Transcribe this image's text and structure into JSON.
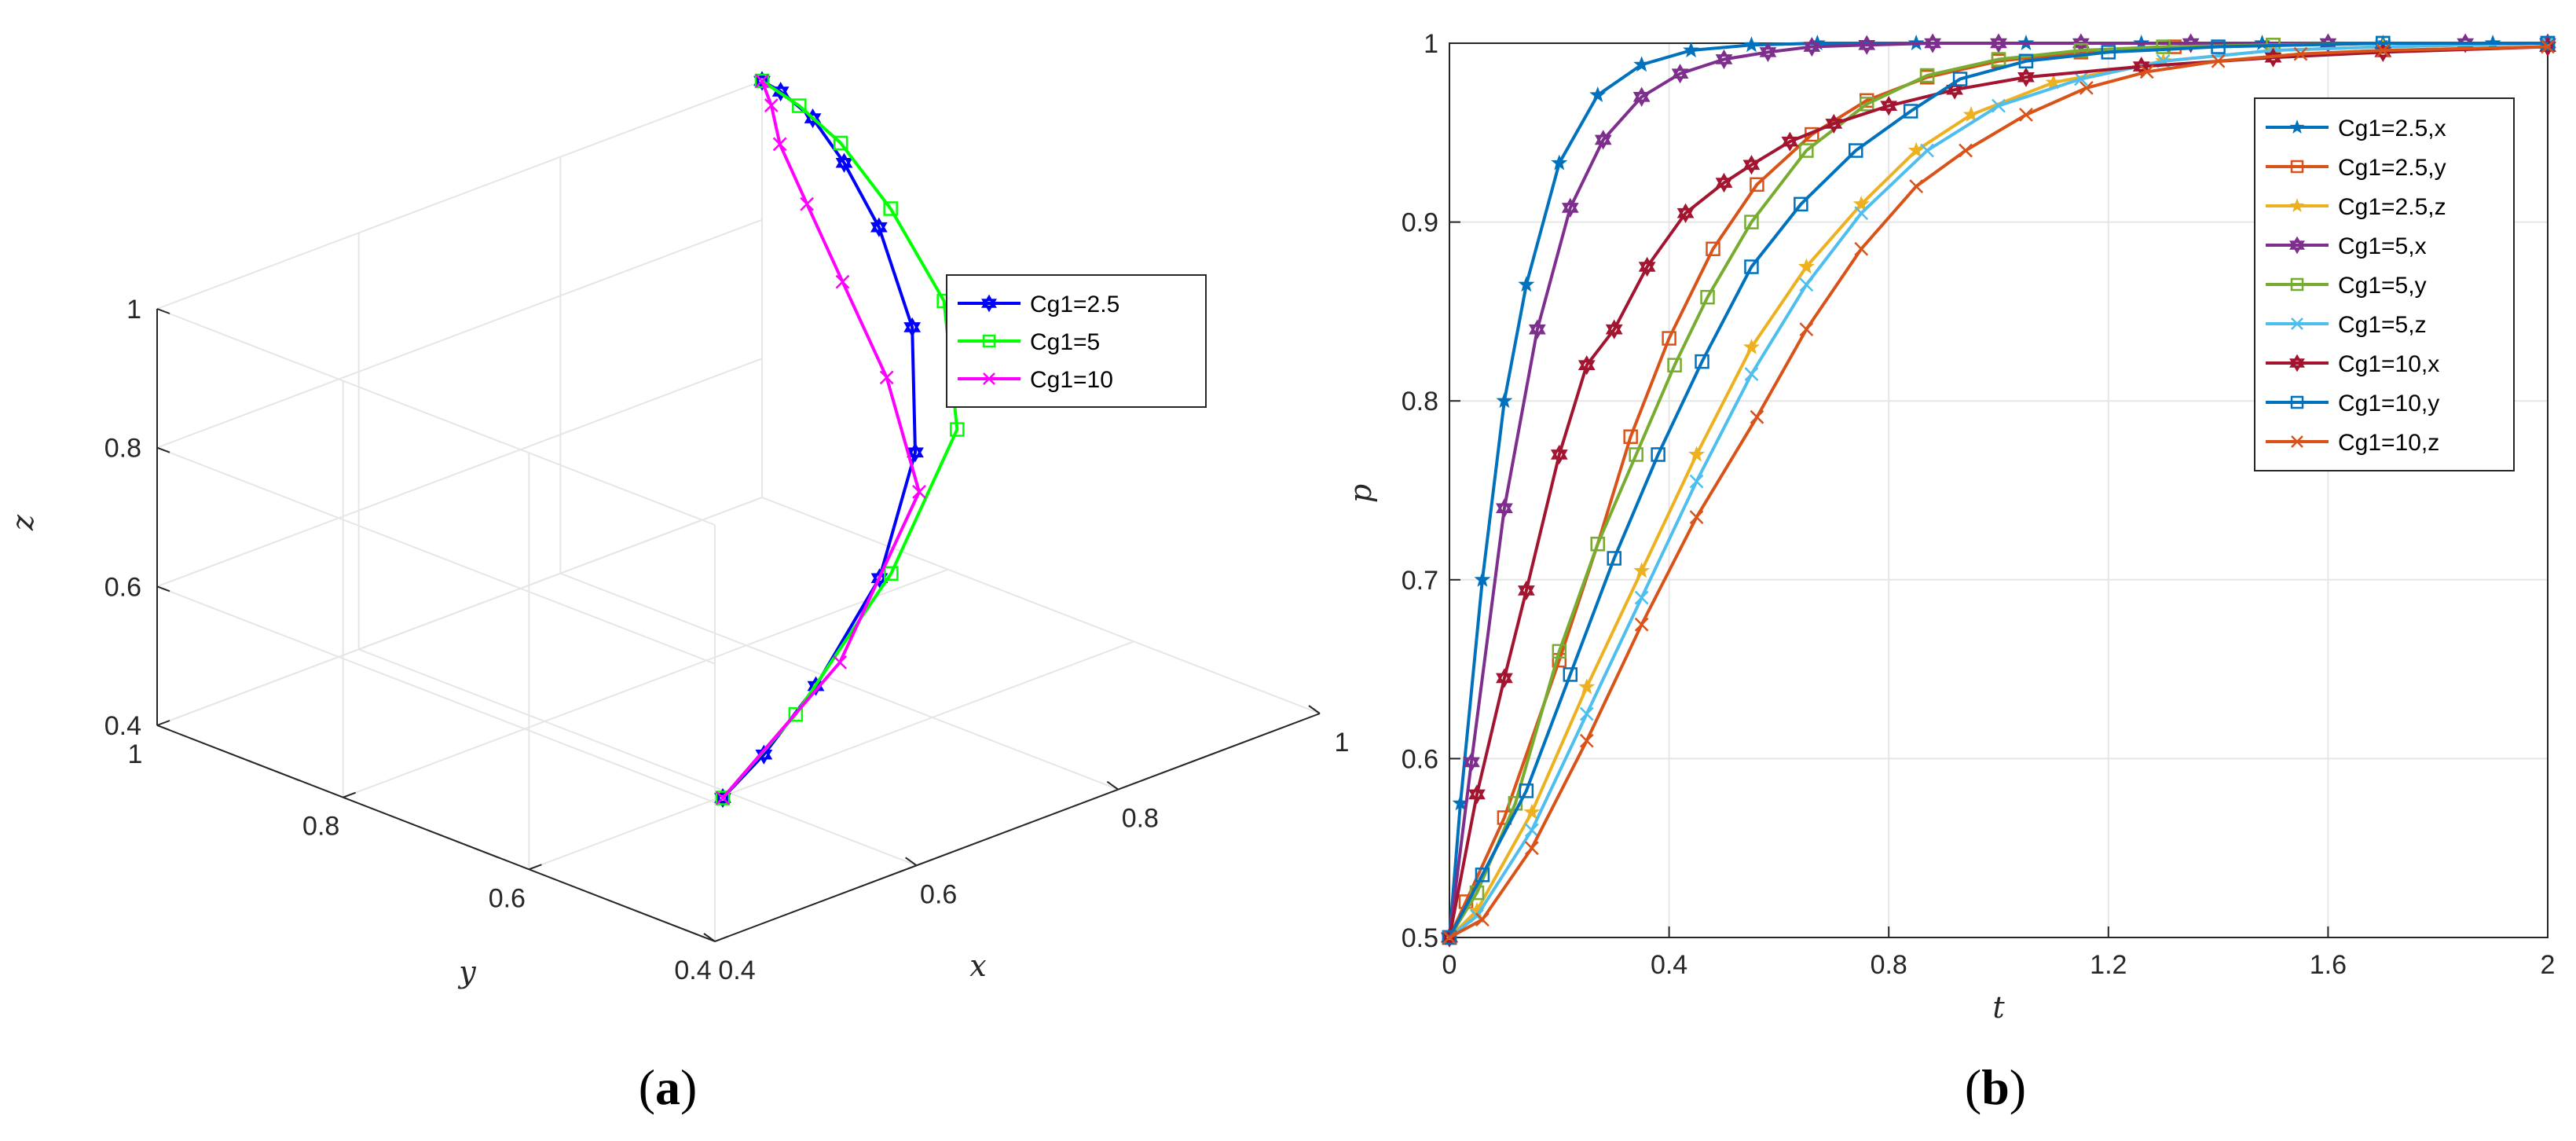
{
  "panels": {
    "a": {
      "caption_open": "(",
      "caption_letter": "a",
      "caption_close": ")"
    },
    "b": {
      "caption_open": "(",
      "caption_letter": "b",
      "caption_close": ")"
    }
  },
  "chart_data": [
    {
      "panel": "a",
      "type": "line",
      "subtype": "3d",
      "xlabel": "x",
      "ylabel": "y",
      "zlabel": "z",
      "xlim": [
        0.4,
        1
      ],
      "ylim": [
        0.4,
        1
      ],
      "zlim": [
        0.4,
        1
      ],
      "x_ticks": [
        "0.4",
        "0.6",
        "0.8",
        "1"
      ],
      "y_ticks": [
        "0.4",
        "0.6",
        "0.8",
        "1"
      ],
      "z_ticks": [
        "0.4",
        "0.6",
        "0.8",
        "1"
      ],
      "grid": true,
      "legend_position": "right",
      "series": [
        {
          "name": "Cg1=2.5",
          "color": "#0000ff",
          "marker": "hexagram",
          "points": [
            [
              0.5,
              0.5,
              0.5
            ],
            [
              0.55,
              0.51,
              0.53
            ],
            [
              0.62,
              0.53,
              0.58
            ],
            [
              0.72,
              0.57,
              0.66
            ],
            [
              0.82,
              0.64,
              0.75
            ],
            [
              0.9,
              0.73,
              0.84
            ],
            [
              0.95,
              0.82,
              0.91
            ],
            [
              0.98,
              0.89,
              0.95
            ],
            [
              0.995,
              0.94,
              0.98
            ],
            [
              1.0,
              0.98,
              0.995
            ],
            [
              1.0,
              1.0,
              1.0
            ]
          ]
        },
        {
          "name": "Cg1=5",
          "color": "#00ff00",
          "marker": "square",
          "points": [
            [
              0.5,
              0.5,
              0.5
            ],
            [
              0.6,
              0.53,
              0.55
            ],
            [
              0.75,
              0.59,
              0.64
            ],
            [
              0.88,
              0.66,
              0.74
            ],
            [
              0.95,
              0.75,
              0.84
            ],
            [
              0.98,
              0.84,
              0.91
            ],
            [
              0.995,
              0.91,
              0.96
            ],
            [
              1.0,
              0.96,
              0.985
            ],
            [
              1.0,
              1.0,
              1.0
            ]
          ]
        },
        {
          "name": "Cg1=10",
          "color": "#ff00ff",
          "marker": "x",
          "points": [
            [
              0.5,
              0.5,
              0.5
            ],
            [
              0.69,
              0.58,
              0.55
            ],
            [
              0.87,
              0.69,
              0.64
            ],
            [
              0.93,
              0.79,
              0.72
            ],
            [
              0.96,
              0.87,
              0.8
            ],
            [
              0.98,
              0.93,
              0.87
            ],
            [
              0.99,
              0.97,
              0.93
            ],
            [
              1.0,
              0.99,
              0.97
            ],
            [
              1.0,
              1.0,
              1.0
            ]
          ]
        }
      ]
    },
    {
      "panel": "b",
      "type": "line",
      "xlabel": "t",
      "ylabel": "p",
      "xlim": [
        0,
        2
      ],
      "ylim": [
        0.5,
        1
      ],
      "x_ticks": [
        "0",
        "0.4",
        "0.8",
        "1.2",
        "1.6",
        "2"
      ],
      "y_ticks": [
        "0.5",
        "0.6",
        "0.7",
        "0.8",
        "0.9",
        "1"
      ],
      "grid": true,
      "legend_position": "right",
      "series": [
        {
          "name": "Cg1=2.5,x",
          "color": "#0072bd",
          "marker": "star",
          "x": [
            0,
            0.02,
            0.06,
            0.1,
            0.14,
            0.2,
            0.27,
            0.35,
            0.44,
            0.55,
            0.67,
            0.85,
            1.05,
            1.26,
            1.48,
            1.7,
            1.9,
            2
          ],
          "y": [
            0.5,
            0.575,
            0.7,
            0.8,
            0.865,
            0.933,
            0.971,
            0.988,
            0.996,
            0.999,
            1.0,
            1.0,
            1.0,
            1.0,
            1.0,
            1.0,
            1.0,
            1.0
          ]
        },
        {
          "name": "Cg1=2.5,y",
          "color": "#d95319",
          "marker": "square",
          "x": [
            0,
            0.03,
            0.1,
            0.2,
            0.27,
            0.33,
            0.4,
            0.48,
            0.56,
            0.66,
            0.76,
            0.87,
            1.0,
            1.15,
            1.32,
            1.5,
            1.7,
            2
          ],
          "y": [
            0.5,
            0.52,
            0.567,
            0.655,
            0.72,
            0.78,
            0.835,
            0.885,
            0.921,
            0.949,
            0.968,
            0.981,
            0.99,
            0.995,
            0.998,
            0.999,
            1.0,
            1.0
          ]
        },
        {
          "name": "Cg1=2.5,z",
          "color": "#edb120",
          "marker": "star",
          "x": [
            0,
            0.05,
            0.15,
            0.25,
            0.35,
            0.45,
            0.55,
            0.65,
            0.75,
            0.85,
            0.95,
            1.1,
            1.3,
            1.5,
            1.7,
            2
          ],
          "y": [
            0.5,
            0.515,
            0.57,
            0.64,
            0.705,
            0.77,
            0.83,
            0.875,
            0.91,
            0.94,
            0.96,
            0.978,
            0.99,
            0.996,
            0.998,
            1.0
          ]
        },
        {
          "name": "Cg1=5,x",
          "color": "#7e2f8e",
          "marker": "hexagram",
          "x": [
            0,
            0.04,
            0.1,
            0.16,
            0.22,
            0.28,
            0.35,
            0.42,
            0.5,
            0.58,
            0.66,
            0.76,
            0.88,
            1.0,
            1.15,
            1.35,
            1.6,
            1.85,
            2
          ],
          "y": [
            0.5,
            0.598,
            0.74,
            0.84,
            0.908,
            0.946,
            0.97,
            0.983,
            0.991,
            0.995,
            0.998,
            0.999,
            1.0,
            1.0,
            1.0,
            1.0,
            1.0,
            1.0,
            1.0
          ]
        },
        {
          "name": "Cg1=5,y",
          "color": "#77ac30",
          "marker": "square",
          "x": [
            0,
            0.05,
            0.12,
            0.2,
            0.27,
            0.34,
            0.41,
            0.47,
            0.55,
            0.65,
            0.76,
            0.87,
            1.0,
            1.15,
            1.3,
            1.5,
            1.7,
            2
          ],
          "y": [
            0.5,
            0.525,
            0.575,
            0.66,
            0.72,
            0.77,
            0.82,
            0.858,
            0.9,
            0.94,
            0.966,
            0.982,
            0.991,
            0.996,
            0.998,
            0.999,
            1.0,
            1.0
          ]
        },
        {
          "name": "Cg1=5,z",
          "color": "#4dbeee",
          "marker": "x",
          "x": [
            0,
            0.05,
            0.15,
            0.25,
            0.35,
            0.45,
            0.55,
            0.65,
            0.75,
            0.87,
            1.0,
            1.15,
            1.3,
            1.5,
            1.7,
            2
          ],
          "y": [
            0.5,
            0.512,
            0.56,
            0.625,
            0.69,
            0.755,
            0.815,
            0.865,
            0.905,
            0.94,
            0.965,
            0.98,
            0.99,
            0.996,
            0.998,
            1.0
          ]
        },
        {
          "name": "Cg1=10,x",
          "color": "#a2142f",
          "marker": "hexagram",
          "x": [
            0,
            0.05,
            0.1,
            0.14,
            0.2,
            0.25,
            0.3,
            0.36,
            0.43,
            0.5,
            0.55,
            0.62,
            0.7,
            0.8,
            0.92,
            1.05,
            1.26,
            1.5,
            1.7,
            2
          ],
          "y": [
            0.5,
            0.58,
            0.645,
            0.694,
            0.77,
            0.82,
            0.84,
            0.875,
            0.905,
            0.922,
            0.932,
            0.945,
            0.955,
            0.965,
            0.974,
            0.981,
            0.987,
            0.992,
            0.995,
            0.998
          ]
        },
        {
          "name": "Cg1=10,y",
          "color": "#0072bd",
          "marker": "square",
          "x": [
            0,
            0.06,
            0.14,
            0.22,
            0.3,
            0.38,
            0.46,
            0.55,
            0.64,
            0.74,
            0.84,
            0.93,
            1.05,
            1.2,
            1.4,
            1.7,
            2
          ],
          "y": [
            0.5,
            0.535,
            0.582,
            0.647,
            0.712,
            0.77,
            0.822,
            0.875,
            0.91,
            0.94,
            0.962,
            0.98,
            0.99,
            0.995,
            0.998,
            1.0,
            1.0
          ]
        },
        {
          "name": "Cg1=10,z",
          "color": "#d95319",
          "marker": "x",
          "x": [
            0,
            0.06,
            0.15,
            0.25,
            0.35,
            0.45,
            0.56,
            0.65,
            0.75,
            0.85,
            0.94,
            1.05,
            1.16,
            1.27,
            1.4,
            1.55,
            1.7,
            2
          ],
          "y": [
            0.5,
            0.51,
            0.55,
            0.61,
            0.675,
            0.735,
            0.791,
            0.84,
            0.885,
            0.92,
            0.94,
            0.96,
            0.975,
            0.984,
            0.99,
            0.994,
            0.996,
            0.998
          ]
        }
      ]
    }
  ]
}
